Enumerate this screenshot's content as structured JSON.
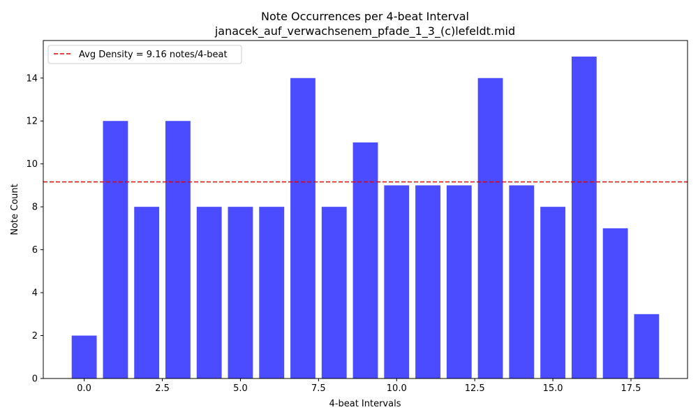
{
  "chart_data": {
    "type": "bar",
    "title": "Note Occurrences per 4-beat Interval",
    "subtitle": "janacek_auf_verwachsenem_pfade_1_3_(c)lefeldt.mid",
    "xlabel": "4-beat Intervals",
    "ylabel": "Note Count",
    "x": [
      0,
      1,
      2,
      3,
      4,
      5,
      6,
      7,
      8,
      9,
      10,
      11,
      12,
      13,
      14,
      15,
      16,
      17,
      18
    ],
    "values": [
      2,
      12,
      8,
      12,
      8,
      8,
      8,
      14,
      8,
      11,
      9,
      9,
      9,
      14,
      9,
      8,
      15,
      7,
      3
    ],
    "xlim": [
      -1.31,
      19.31
    ],
    "ylim": [
      0,
      15.75
    ],
    "xticks": [
      0.0,
      2.5,
      5.0,
      7.5,
      10.0,
      12.5,
      15.0,
      17.5
    ],
    "xtick_labels": [
      "0.0",
      "2.5",
      "5.0",
      "7.5",
      "10.0",
      "12.5",
      "15.0",
      "17.5"
    ],
    "yticks": [
      0,
      2,
      4,
      6,
      8,
      10,
      12,
      14
    ],
    "ytick_labels": [
      "0",
      "2",
      "4",
      "6",
      "8",
      "10",
      "12",
      "14"
    ],
    "bar_color": "#4b4bff",
    "avg_line": {
      "value": 9.16,
      "color": "#e00000",
      "label": "Avg Density = 9.16 notes/4-beat"
    },
    "legend_position": "top-left",
    "grid": false
  }
}
